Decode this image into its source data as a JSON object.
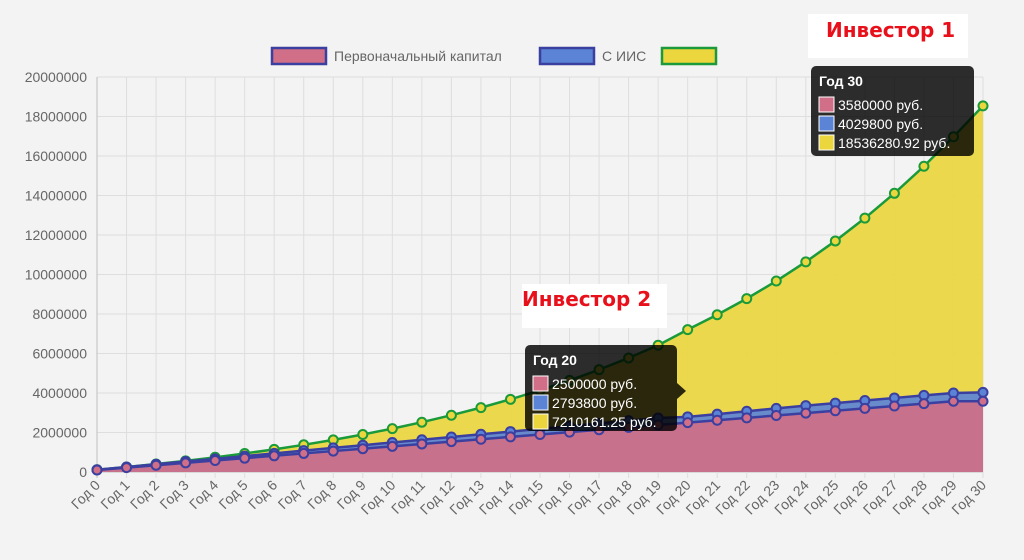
{
  "chart_data": {
    "type": "area",
    "categories": [
      "Год 0",
      "Год 1",
      "Год 2",
      "Год 3",
      "Год 4",
      "Год 5",
      "Год 6",
      "Год 7",
      "Год 8",
      "Год 9",
      "Год 10",
      "Год 11",
      "Год 12",
      "Год 13",
      "Год 14",
      "Год 15",
      "Год 16",
      "Год 17",
      "Год 18",
      "Год 19",
      "Год 20",
      "Год 21",
      "Год 22",
      "Год 23",
      "Год 24",
      "Год 25",
      "Год 26",
      "Год 27",
      "Год 28",
      "Год 29",
      "Год 30"
    ],
    "ylim": [
      0,
      20000000
    ],
    "yticks": [
      0,
      2000000,
      4000000,
      6000000,
      8000000,
      10000000,
      12000000,
      14000000,
      16000000,
      18000000,
      20000000
    ],
    "grid": true,
    "legend": "top",
    "series": [
      {
        "name": "Первоначальный капитал",
        "fill": "#d06f87",
        "border": "#3b3fa0",
        "point": "#d06f87",
        "values": [
          100000,
          220000,
          340000,
          460000,
          580000,
          700000,
          820000,
          940000,
          1060000,
          1180000,
          1300000,
          1420000,
          1540000,
          1660000,
          1780000,
          1900000,
          2020000,
          2140000,
          2260000,
          2380000,
          2500000,
          2620000,
          2740000,
          2860000,
          2980000,
          3100000,
          3220000,
          3340000,
          3460000,
          3580000,
          3580000
        ]
      },
      {
        "name": "С ИИС",
        "fill": "#5b84d6",
        "border": "#3b3fa0",
        "point": "#5b84d6",
        "values": [
          115000,
          253000,
          391000,
          529000,
          667000,
          805000,
          943000,
          1081000,
          1219000,
          1357000,
          1495000,
          1633000,
          1771000,
          1909000,
          2047000,
          2185000,
          2323000,
          2461000,
          2599000,
          2737000,
          2793800,
          2930000,
          3075000,
          3220000,
          3360000,
          3490000,
          3620000,
          3750000,
          3880000,
          4000000,
          4029800
        ]
      },
      {
        "name": "",
        "fill": "#ecd63e",
        "border": "#1a9a3a",
        "point": "#ecd63e",
        "values": [
          115000,
          253000,
          403000,
          566000,
          744000,
          937000,
          1148000,
          1377000,
          1627000,
          1900000,
          2197000,
          2521000,
          2875000,
          3260000,
          3680000,
          4138000,
          4637000,
          5181000,
          5774000,
          6420000,
          7210161.25,
          7961000,
          8778000,
          9669000,
          10640000,
          11699000,
          12853000,
          14111000,
          15481000,
          16975000,
          18536280.92
        ]
      }
    ],
    "tooltips": [
      {
        "title": "Год 20",
        "lines": [
          "2500000 руб.",
          "2793800 руб.",
          "7210161.25 руб."
        ]
      },
      {
        "title": "Год 30",
        "lines": [
          "3580000 руб.",
          "4029800 руб.",
          "18536280.92 руб."
        ]
      }
    ]
  },
  "annotations": {
    "investor1": "Инвестор 1",
    "investor2": "Инвестор 2"
  }
}
